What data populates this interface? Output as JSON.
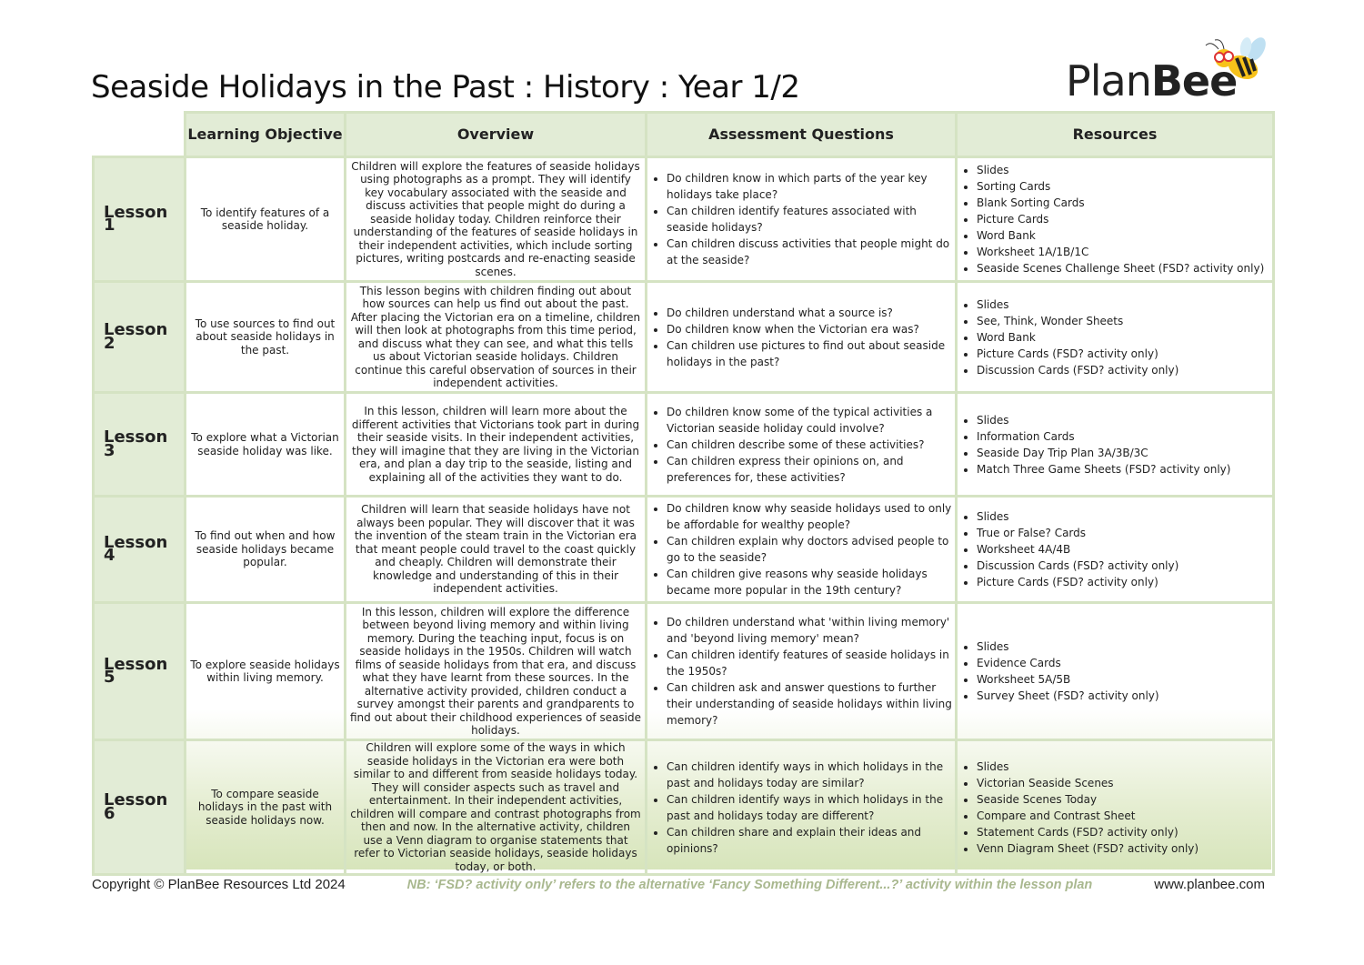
{
  "title": "Seaside Holidays in the Past : History : Year 1/2",
  "logo": {
    "text_light": "Plan",
    "text_bold": "Bee"
  },
  "headers": [
    "Learning Objective",
    "Overview",
    "Assessment Questions",
    "Resources"
  ],
  "lessons": [
    {
      "label": "Lesson 1",
      "objective": "To identify features of a seaside holiday.",
      "overview": "Children will explore the features of seaside holidays using photographs as a prompt. They will identify key vocabulary associated with the seaside and discuss activities that people might do during a seaside holiday today. Children reinforce their understanding of the features of seaside holidays in their independent activities, which include sorting pictures, writing postcards and re-enacting seaside scenes.",
      "questions": [
        "Do children know in which parts of the year key holidays take place?",
        "Can children identify features associated with seaside holidays?",
        "Can children discuss activities that people might do at the seaside?"
      ],
      "resources": [
        "Slides",
        "Sorting Cards",
        "Blank Sorting Cards",
        "Picture Cards",
        "Word Bank",
        "Worksheet 1A/1B/1C",
        "Seaside Scenes Challenge Sheet (FSD? activity only)"
      ]
    },
    {
      "label": "Lesson 2",
      "objective": "To use sources to find out about seaside holidays in the past.",
      "overview": "This lesson begins with children finding out about how sources can help us find out about the past. After placing the Victorian era on a timeline, children will then look at photographs from this time period, and discuss what they can see, and what this tells us about Victorian seaside holidays. Children continue this careful observation of sources in their independent activities.",
      "questions": [
        "Do children understand what a source is?",
        "Do children know when the Victorian era was?",
        "Can children use pictures to find out about seaside holidays in the past?"
      ],
      "resources": [
        "Slides",
        "See, Think, Wonder Sheets",
        "Word Bank",
        "Picture Cards (FSD? activity only)",
        "Discussion Cards (FSD? activity only)"
      ]
    },
    {
      "label": "Lesson 3",
      "objective": "To explore what a Victorian seaside holiday was like.",
      "overview": "In this lesson, children will learn more about the different activities that Victorians took part in during their seaside visits. In their independent activities, they will imagine that they are living in the Victorian era, and plan a day trip to the seaside, listing and explaining all of the activities they want to do.",
      "questions": [
        "Do children know some of the typical activities a Victorian seaside holiday could involve?",
        "Can children describe some of these activities?",
        "Can children express their opinions on, and preferences for, these activities?"
      ],
      "resources": [
        "Slides",
        "Information Cards",
        "Seaside Day Trip Plan 3A/3B/3C",
        "Match Three Game Sheets (FSD? activity only)"
      ]
    },
    {
      "label": "Lesson 4",
      "objective": "To find out when and how seaside holidays became popular.",
      "overview": "Children will learn that seaside holidays have not always been popular. They will discover that it was the invention of the steam train in the Victorian era that meant people could travel to the coast quickly and cheaply. Children will demonstrate their knowledge and understanding of this in their independent activities.",
      "questions": [
        "Do children know why seaside holidays used to only be affordable for wealthy people?",
        "Can children explain why doctors advised people to go to the seaside?",
        "Can children give reasons why seaside holidays became more popular in the 19th century?"
      ],
      "resources": [
        "Slides",
        "True or False? Cards",
        "Worksheet 4A/4B",
        "Discussion Cards (FSD? activity only)",
        "Picture Cards (FSD? activity only)"
      ]
    },
    {
      "label": "Lesson 5",
      "objective": "To explore seaside holidays within living memory.",
      "overview": "In this lesson, children will explore the difference between beyond living memory and within living memory. During the teaching input, focus is on seaside holidays in the 1950s. Children will watch films of seaside holidays from that era, and discuss what they have learnt from these sources. In the alternative activity provided, children conduct a survey amongst their parents and grandparents to find out about their childhood experiences of seaside holidays.",
      "questions": [
        "Do children understand what 'within living memory' and 'beyond living memory' mean?",
        "Can children identify features of seaside holidays in the 1950s?",
        "Can children ask and answer questions to further their understanding of seaside holidays within living memory?"
      ],
      "resources": [
        "Slides",
        "Evidence Cards",
        "Worksheet 5A/5B",
        "Survey Sheet (FSD? activity only)"
      ]
    },
    {
      "label": "Lesson 6",
      "objective": "To compare seaside holidays in the past with seaside holidays now.",
      "overview": "Children will explore some of the ways in which seaside holidays in the Victorian era were both similar to and different from seaside holidays today. They will consider aspects such as travel and entertainment. In their independent activities, children will compare and contrast photographs from then and now. In the alternative activity, children use a Venn diagram to organise statements that refer to Victorian seaside holidays, seaside holidays today, or both.",
      "questions": [
        "Can children identify ways in which holidays in the past and holidays today are similar?",
        "Can children identify ways in which holidays in the past and holidays today are different?",
        "Can children share and explain their ideas and opinions?"
      ],
      "resources": [
        "Slides",
        "Victorian Seaside Scenes",
        "Seaside Scenes Today",
        "Compare and Contrast Sheet",
        "Statement Cards (FSD? activity only)",
        "Venn Diagram Sheet (FSD? activity only)"
      ]
    }
  ],
  "footer": {
    "copyright": "Copyright © PlanBee Resources Ltd 2024",
    "note": "NB: ‘FSD? activity only’ refers to the alternative ‘Fancy Something Different...?’ activity within the lesson plan",
    "website": "www.planbee.com"
  },
  "colors": {
    "header_bg": "#e2ecd6",
    "border": "#d5e3c3",
    "note": "#a9b88f"
  }
}
